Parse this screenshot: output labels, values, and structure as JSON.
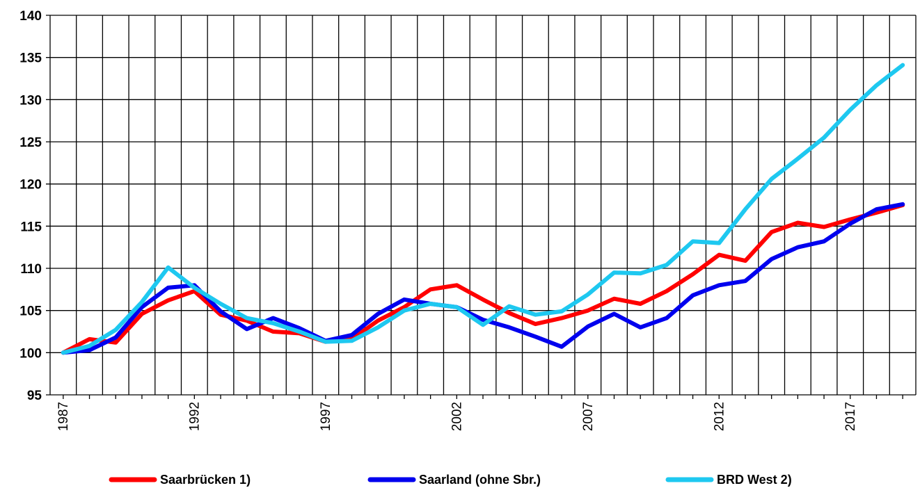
{
  "chart_data": {
    "type": "line",
    "title": "",
    "xlabel": "",
    "ylabel": "",
    "xlim": [
      1987,
      2019
    ],
    "ylim": [
      95,
      140
    ],
    "yticks": [
      "95",
      "100",
      "105",
      "110",
      "115",
      "120",
      "125",
      "130",
      "135",
      "140"
    ],
    "xticks": [
      "1987",
      "1992",
      "1997",
      "2002",
      "2007",
      "2012",
      "2017"
    ],
    "grid": "vertical-every-year, horizontal-every-5",
    "legend_position": "bottom",
    "x": [
      1987,
      1988,
      1989,
      1990,
      1991,
      1992,
      1993,
      1994,
      1995,
      1996,
      1997,
      1998,
      1999,
      2000,
      2001,
      2002,
      2003,
      2004,
      2005,
      2006,
      2007,
      2008,
      2009,
      2010,
      2011,
      2012,
      2013,
      2014,
      2015,
      2016,
      2017,
      2018,
      2019
    ],
    "series": [
      {
        "name": "Saarbrücken 1)",
        "color": "#ff0000",
        "values": [
          100,
          101.6,
          101.2,
          104.6,
          106.2,
          107.3,
          104.5,
          103.8,
          102.5,
          102.3,
          101.3,
          101.6,
          103.8,
          105.4,
          107.5,
          108.0,
          106.3,
          104.7,
          103.4,
          104.1,
          105.0,
          106.4,
          105.8,
          107.3,
          109.3,
          111.6,
          110.9,
          114.3,
          115.4,
          114.9,
          115.8,
          116.6,
          117.5
        ]
      },
      {
        "name": "Saarland (ohne Sbr.)",
        "color": "#0000ee",
        "values": [
          100,
          100.3,
          101.8,
          105.4,
          107.7,
          108.0,
          104.9,
          102.8,
          104.1,
          102.9,
          101.4,
          102.1,
          104.6,
          106.3,
          105.8,
          105.4,
          103.9,
          103.0,
          101.9,
          100.7,
          103.1,
          104.6,
          103.0,
          104.1,
          106.8,
          108.0,
          108.5,
          111.1,
          112.5,
          113.2,
          115.3,
          117.0,
          117.6
        ]
      },
      {
        "name": "BRD West 2)",
        "color": "#1ec8f0",
        "values": [
          100,
          100.8,
          102.7,
          106.0,
          110.1,
          107.7,
          105.8,
          104.1,
          103.5,
          102.5,
          101.3,
          101.4,
          103.0,
          105.0,
          105.8,
          105.4,
          103.3,
          105.5,
          104.5,
          104.9,
          106.9,
          109.5,
          109.4,
          110.4,
          113.2,
          113.0,
          117.0,
          120.6,
          123.0,
          125.5,
          128.8,
          131.7,
          134.1
        ]
      }
    ]
  }
}
